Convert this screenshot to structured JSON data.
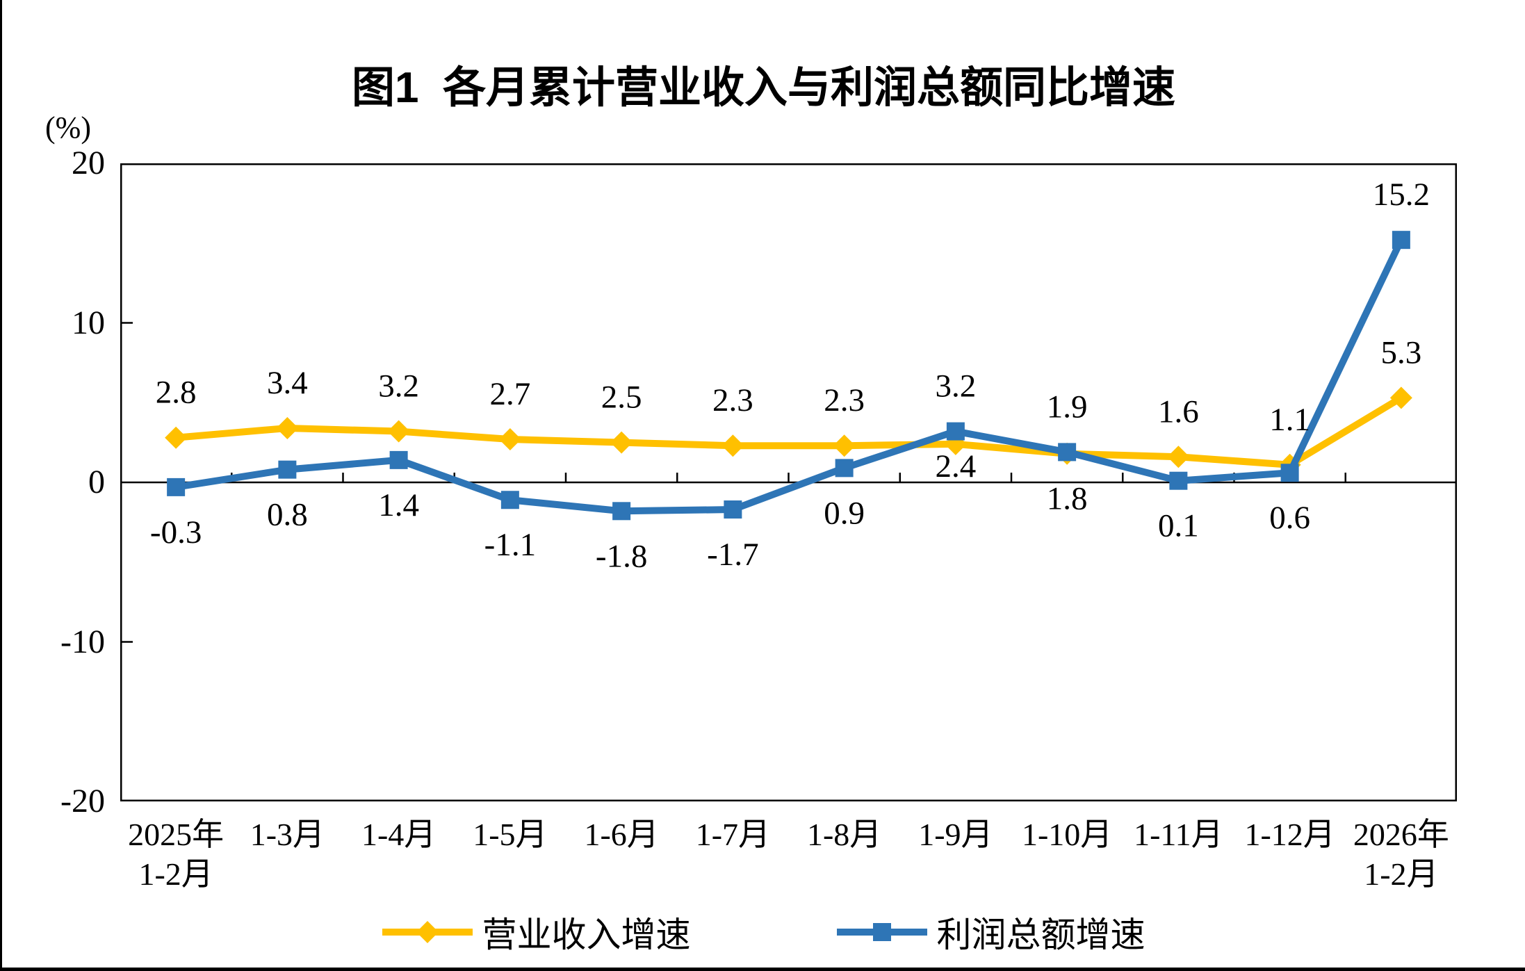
{
  "chart_data": {
    "type": "line",
    "title": "图1  各月累计营业收入与利润总额同比增速",
    "ylabel_unit": "(%)",
    "categories": [
      "2025年\n1-2月",
      "1-3月",
      "1-4月",
      "1-5月",
      "1-6月",
      "1-7月",
      "1-8月",
      "1-9月",
      "1-10月",
      "1-11月",
      "1-12月",
      "2026年\n1-2月"
    ],
    "y_ticks": [
      20,
      10,
      0,
      -10,
      -20
    ],
    "ylim": [
      -20,
      20
    ],
    "grid": false,
    "legend_position": "bottom",
    "series": [
      {
        "name": "营业收入增速",
        "color": "#FFC000",
        "marker": "diamond",
        "values": [
          2.8,
          3.4,
          3.2,
          2.7,
          2.5,
          2.3,
          2.3,
          2.4,
          1.8,
          1.6,
          1.1,
          5.3
        ],
        "label_side": [
          "above",
          "above",
          "above",
          "above",
          "above",
          "above",
          "above",
          "below",
          "below",
          "above",
          "above",
          "above"
        ]
      },
      {
        "name": "利润总额增速",
        "color": "#2E75B6",
        "marker": "square",
        "values": [
          -0.3,
          0.8,
          1.4,
          -1.1,
          -1.8,
          -1.7,
          0.9,
          3.2,
          1.9,
          0.1,
          0.6,
          15.2
        ],
        "label_side": [
          "below",
          "below",
          "below",
          "below",
          "below",
          "below",
          "below",
          "above",
          "above",
          "below",
          "below",
          "above"
        ]
      }
    ]
  }
}
